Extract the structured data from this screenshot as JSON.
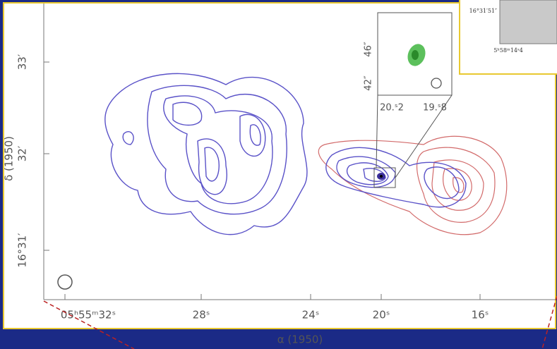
{
  "plot": {
    "y_axis_label": "δ (1950)",
    "x_axis_label": "α (1950)",
    "y_ticks": [
      "33′",
      "32′",
      "16°31′"
    ],
    "x_ticks": [
      "05ʰ55ᵐ32ˢ",
      "28ˢ",
      "24ˢ",
      "20ˢ",
      "16ˢ"
    ]
  },
  "zoom_inset": {
    "y_ticks": [
      "46″",
      "42″"
    ],
    "x_ticks": [
      "20.ˢ2",
      "19.ˢ8"
    ]
  },
  "corner_inset": {
    "y_tick": "16°31′51″",
    "x_tick": "5ʰ58ᵐ14ˢ4"
  }
}
